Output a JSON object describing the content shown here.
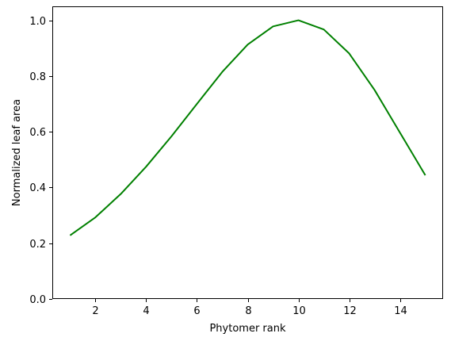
{
  "chart_data": {
    "type": "line",
    "title": "",
    "xlabel": "Phytomer rank",
    "ylabel": "Normalized leaf area",
    "xlim": [
      0.3,
      15.7
    ],
    "ylim": [
      0.0,
      1.05
    ],
    "x_ticks": [
      2,
      4,
      6,
      8,
      10,
      12,
      14
    ],
    "y_ticks": [
      0.0,
      0.2,
      0.4,
      0.6,
      0.8,
      1.0
    ],
    "x_tick_labels": [
      "2",
      "4",
      "6",
      "8",
      "10",
      "12",
      "14"
    ],
    "y_tick_labels": [
      "0.0",
      "0.2",
      "0.4",
      "0.6",
      "0.8",
      "1.0"
    ],
    "grid": false,
    "series": [
      {
        "color": "#008000",
        "x": [
          1,
          2,
          3,
          4,
          5,
          6,
          7,
          8,
          9,
          10,
          11,
          12,
          13,
          14,
          15
        ],
        "y": [
          0.228,
          0.293,
          0.377,
          0.475,
          0.584,
          0.7,
          0.815,
          0.913,
          0.978,
          1.0,
          0.967,
          0.881,
          0.75,
          0.597,
          0.444
        ]
      }
    ]
  }
}
